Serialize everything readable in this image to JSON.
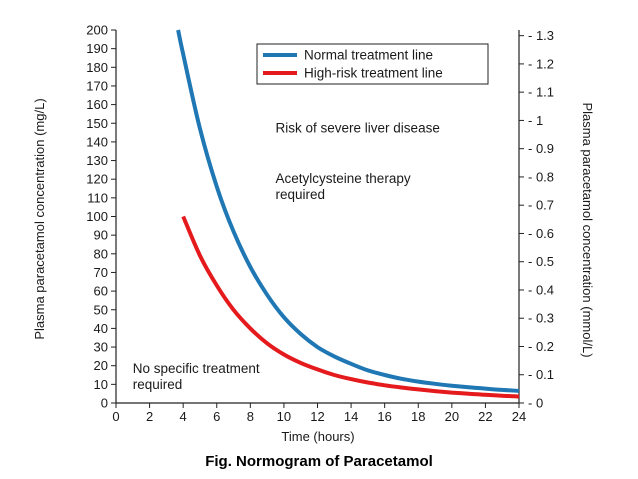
{
  "caption": "Fig. Normogram of Paracetamol",
  "chart_data": {
    "type": "line",
    "title": "",
    "xlabel": "Time (hours)",
    "ylabel_left": "Plasma paracetamol concentration (mg/L)",
    "ylabel_right": "Plasma paracetamol concentration (mmol/L)",
    "xlim": [
      0,
      24
    ],
    "ylim_left": [
      0,
      200
    ],
    "ylim_right": [
      0,
      1.32
    ],
    "x_ticks": [
      "0",
      "2",
      "4",
      "6",
      "8",
      "10",
      "12",
      "14",
      "16",
      "18",
      "20",
      "22",
      "24"
    ],
    "y_ticks_left": [
      "0",
      "10",
      "20",
      "30",
      "40",
      "50",
      "60",
      "70",
      "80",
      "90",
      "100",
      "110",
      "120",
      "130",
      "140",
      "150",
      "160",
      "170",
      "180",
      "190",
      "200"
    ],
    "y_ticks_right": [
      "0",
      "0.1",
      "0.2",
      "0.3",
      "0.4",
      "0.5",
      "0.6",
      "0.7",
      "0.8",
      "0.9",
      "1",
      "1.1",
      "1.2",
      "1.3"
    ],
    "grid": false,
    "legend_position": "top-right",
    "series": [
      {
        "name": "Normal treatment line",
        "color": "#1f77b4",
        "x": [
          3.7,
          4,
          5,
          6,
          7,
          8,
          9,
          10,
          11,
          12,
          13,
          14,
          15,
          16,
          17,
          18,
          19,
          20,
          21,
          22,
          23,
          24
        ],
        "y": [
          200,
          187,
          147,
          116,
          92,
          73,
          58,
          46,
          37,
          30,
          25,
          21,
          17.5,
          15,
          13,
          11.5,
          10.3,
          9.3,
          8.4,
          7.7,
          7.0,
          6.5
        ]
      },
      {
        "name": "High-risk treatment line",
        "color": "#e41a1c",
        "x": [
          4,
          5,
          6,
          7,
          8,
          9,
          10,
          11,
          12,
          13,
          14,
          15,
          16,
          17,
          18,
          19,
          20,
          21,
          22,
          23,
          24
        ],
        "y": [
          100,
          79,
          63,
          50,
          40,
          32,
          26,
          21.5,
          18,
          15,
          12.8,
          11,
          9.5,
          8.3,
          7.3,
          6.4,
          5.6,
          5.0,
          4.4,
          3.9,
          3.5
        ]
      }
    ],
    "annotations": [
      {
        "lines": [
          "Risk of severe liver disease"
        ],
        "x": 9.5,
        "y": 145
      },
      {
        "lines": [
          "Acetylcysteine therapy",
          "required"
        ],
        "x": 9.5,
        "y": 118
      },
      {
        "lines": [
          "No specific treatment",
          "required"
        ],
        "x": 1,
        "y": 16
      }
    ]
  }
}
